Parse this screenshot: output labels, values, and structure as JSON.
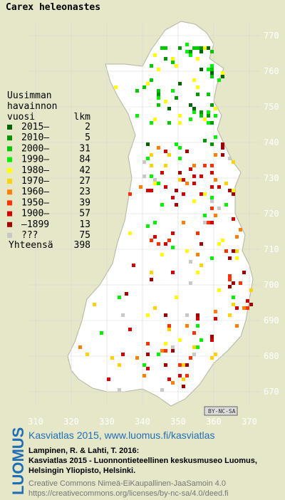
{
  "title": "Carex heleonastes",
  "legend": {
    "header": [
      "Uusimman",
      "havainnon",
      "vuosi"
    ],
    "count_header": "lkm",
    "entries": [
      {
        "label": "2015–",
        "count": 2,
        "color": "#006400"
      },
      {
        "label": "2010–",
        "count": 5,
        "color": "#009600"
      },
      {
        "label": "2000–",
        "count": 31,
        "color": "#00c800"
      },
      {
        "label": "1990–",
        "count": 84,
        "color": "#00f000"
      },
      {
        "label": "1980–",
        "count": 42,
        "color": "#ffff00"
      },
      {
        "label": "1970–",
        "count": 27,
        "color": "#ffd200"
      },
      {
        "label": "1960–",
        "count": 23,
        "color": "#ff8000"
      },
      {
        "label": "1950–",
        "count": 39,
        "color": "#ff3200"
      },
      {
        "label": "1900–",
        "count": 57,
        "color": "#d20000"
      },
      {
        "label": "–1899",
        "count": 13,
        "color": "#a00000"
      },
      {
        "label": "???",
        "count": 75,
        "color": "#c8c8c8"
      }
    ],
    "total_label": "Yhteensä",
    "total": 398
  },
  "xticks": [
    310,
    320,
    330,
    340,
    350,
    360,
    370
  ],
  "yticks": [
    770,
    760,
    750,
    740,
    730,
    720,
    710,
    700,
    690,
    680,
    670
  ],
  "license_badge": "BY-NC-SA",
  "footer": {
    "logo": "LUOMUS",
    "link": "Kasviatlas 2015, www.luomus.fi/kasviatlas",
    "citation": [
      "Lampinen, R. & Lahti, T. 2016:",
      "Kasviatlas 2015 - Luonnontieteellinen keskusmuseo Luomus,",
      "Helsingin Yliopisto, Helsinki."
    ],
    "license": [
      "Creative Commons Nimeä-EiKaupallinen-JaaSamoin 4.0",
      "https://creativecommons.org/licenses/by-nc-sa/4.0/deed.fi"
    ]
  }
}
